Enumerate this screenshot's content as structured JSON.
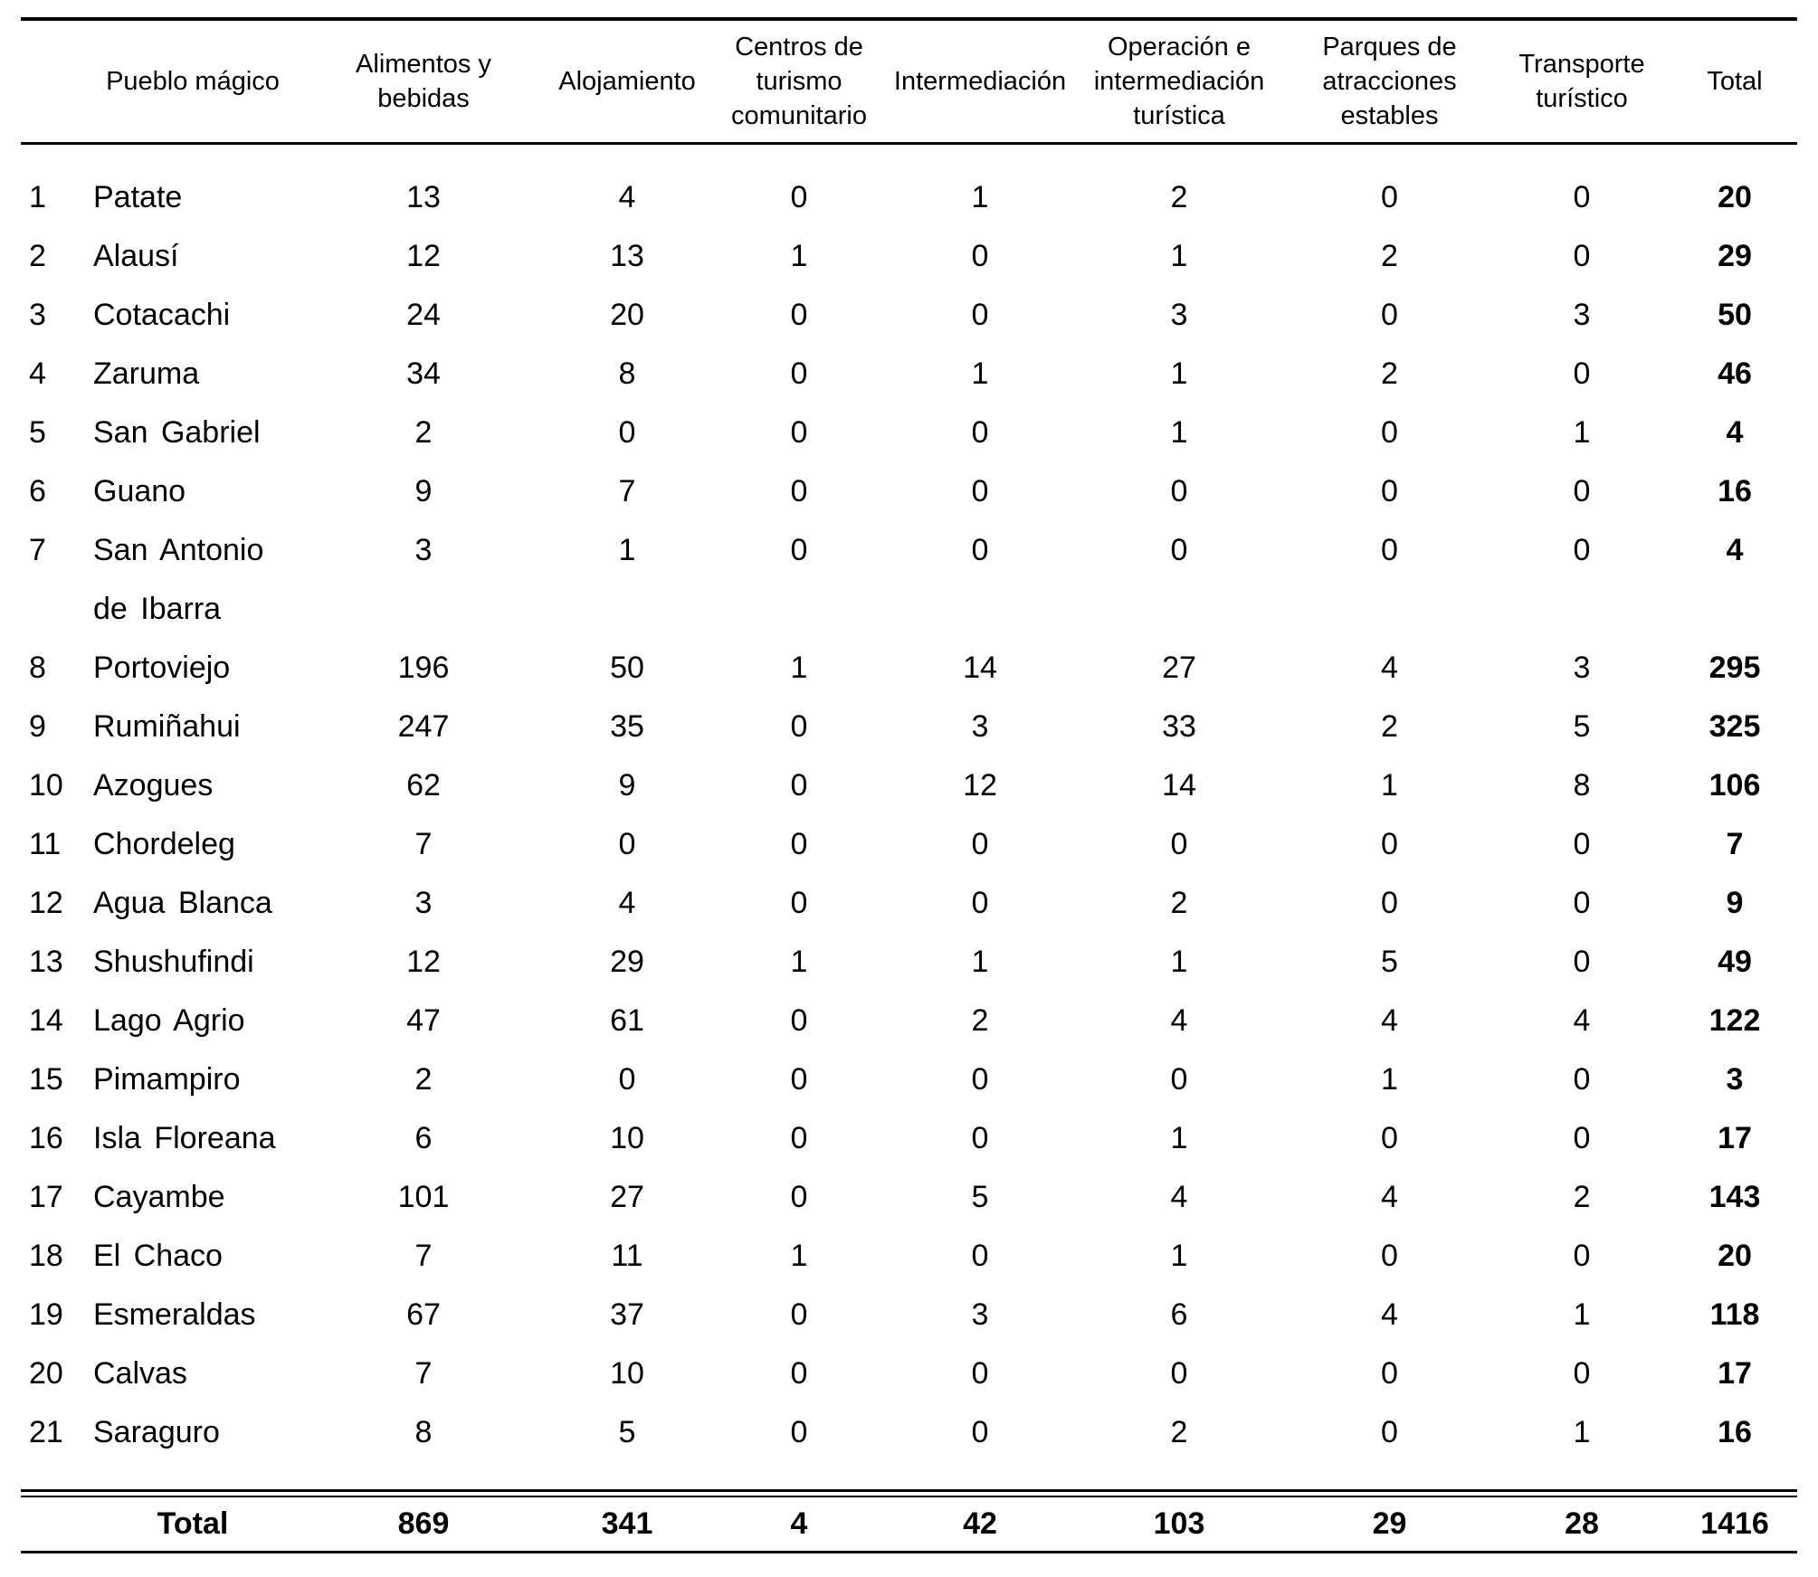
{
  "table": {
    "columns": [
      "Pueblo mágico",
      "Alimentos y bebidas",
      "Alojamiento",
      "Centros de turismo comunitario",
      "Intermediación",
      "Operación e intermediación turística",
      "Parques de atracciones estables",
      "Transporte turístico",
      "Total"
    ],
    "rows": [
      {
        "num": "1",
        "name": "Patate",
        "values": [
          13,
          4,
          0,
          1,
          2,
          0,
          0
        ],
        "total": 20
      },
      {
        "num": "2",
        "name": "Alausí",
        "values": [
          12,
          13,
          1,
          0,
          1,
          2,
          0
        ],
        "total": 29
      },
      {
        "num": "3",
        "name": "Cotacachi",
        "values": [
          24,
          20,
          0,
          0,
          3,
          0,
          3
        ],
        "total": 50
      },
      {
        "num": "4",
        "name": "Zaruma",
        "values": [
          34,
          8,
          0,
          1,
          1,
          2,
          0
        ],
        "total": 46
      },
      {
        "num": "5",
        "name": "San Gabriel",
        "values": [
          2,
          0,
          0,
          0,
          1,
          0,
          1
        ],
        "total": 4
      },
      {
        "num": "6",
        "name": "Guano",
        "values": [
          9,
          7,
          0,
          0,
          0,
          0,
          0
        ],
        "total": 16
      },
      {
        "num": "7",
        "name": "San Antonio de Ibarra",
        "values": [
          3,
          1,
          0,
          0,
          0,
          0,
          0
        ],
        "total": 4
      },
      {
        "num": "8",
        "name": "Portoviejo",
        "values": [
          196,
          50,
          1,
          14,
          27,
          4,
          3
        ],
        "total": 295
      },
      {
        "num": "9",
        "name": "Rumiñahui",
        "values": [
          247,
          35,
          0,
          3,
          33,
          2,
          5
        ],
        "total": 325
      },
      {
        "num": "10",
        "name": "Azogues",
        "values": [
          62,
          9,
          0,
          12,
          14,
          1,
          8
        ],
        "total": 106
      },
      {
        "num": "11",
        "name": "Chordeleg",
        "values": [
          7,
          0,
          0,
          0,
          0,
          0,
          0
        ],
        "total": 7
      },
      {
        "num": "12",
        "name": "Agua Blanca",
        "values": [
          3,
          4,
          0,
          0,
          2,
          0,
          0
        ],
        "total": 9
      },
      {
        "num": "13",
        "name": "Shushufindi",
        "values": [
          12,
          29,
          1,
          1,
          1,
          5,
          0
        ],
        "total": 49
      },
      {
        "num": "14",
        "name": "Lago Agrio",
        "values": [
          47,
          61,
          0,
          2,
          4,
          4,
          4
        ],
        "total": 122
      },
      {
        "num": "15",
        "name": "Pimampiro",
        "values": [
          2,
          0,
          0,
          0,
          0,
          1,
          0
        ],
        "total": 3
      },
      {
        "num": "16",
        "name": "Isla Floreana",
        "values": [
          6,
          10,
          0,
          0,
          1,
          0,
          0
        ],
        "total": 17
      },
      {
        "num": "17",
        "name": "Cayambe",
        "values": [
          101,
          27,
          0,
          5,
          4,
          4,
          2
        ],
        "total": 143
      },
      {
        "num": "18",
        "name": "El Chaco",
        "values": [
          7,
          11,
          1,
          0,
          1,
          0,
          0
        ],
        "total": 20
      },
      {
        "num": "19",
        "name": "Esmeraldas",
        "values": [
          67,
          37,
          0,
          3,
          6,
          4,
          1
        ],
        "total": 118
      },
      {
        "num": "20",
        "name": "Calvas",
        "values": [
          7,
          10,
          0,
          0,
          0,
          0,
          0
        ],
        "total": 17
      },
      {
        "num": "21",
        "name": "Saraguro",
        "values": [
          8,
          5,
          0,
          0,
          2,
          0,
          1
        ],
        "total": 16
      }
    ],
    "total_row": {
      "label": "Total",
      "values": [
        869,
        341,
        4,
        42,
        103,
        29,
        28
      ],
      "total": 1416
    }
  },
  "colors": {
    "background": "#ffffff",
    "text": "#000000",
    "rule": "#000000"
  }
}
